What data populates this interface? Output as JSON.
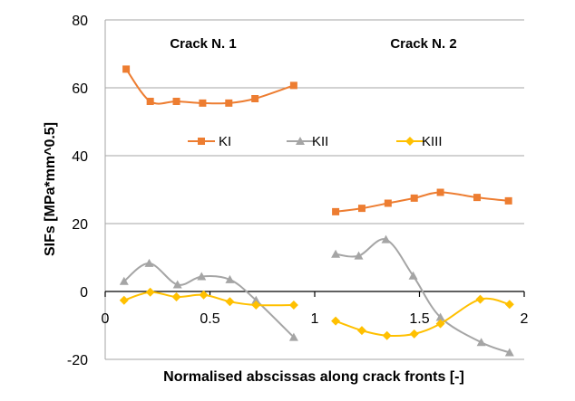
{
  "chart_data": {
    "type": "line",
    "title": "",
    "xlabel": "Normalised abscissas along crack fronts [-]",
    "ylabel": "SIFs [MPa*mm^0.5]",
    "xlim": [
      0,
      2
    ],
    "ylim": [
      -20,
      80
    ],
    "xticks": [
      0,
      0.5,
      1,
      1.5,
      2
    ],
    "xtick_labels": [
      "0",
      "0.5",
      "1",
      "1.5",
      "2"
    ],
    "yticks": [
      -20,
      0,
      20,
      40,
      60,
      80
    ],
    "ytick_labels": [
      "-20",
      "0",
      "20",
      "40",
      "60",
      "80"
    ],
    "grid": "horizontal",
    "legend_position": "center",
    "annotations": [
      "Crack N. 1",
      "Crack N. 2"
    ],
    "series": [
      {
        "name": "KI",
        "color": "#ED7D31",
        "marker": "square",
        "segments": [
          {
            "x": [
              0.1,
              0.215,
              0.34,
              0.465,
              0.59,
              0.715,
              0.9
            ],
            "y": [
              65.5,
              56,
              56,
              55.5,
              55.5,
              56.8,
              60.7
            ]
          },
          {
            "x": [
              1.1,
              1.225,
              1.35,
              1.475,
              1.6,
              1.775,
              1.925
            ],
            "y": [
              23.5,
              24.5,
              26,
              27.5,
              29.2,
              27.7,
              26.7
            ]
          }
        ]
      },
      {
        "name": "KII",
        "color": "#A5A5A5",
        "marker": "triangle",
        "segments": [
          {
            "x": [
              0.09,
              0.21,
              0.345,
              0.46,
              0.595,
              0.72,
              0.9
            ],
            "y": [
              3,
              8.3,
              2,
              4.4,
              3.5,
              -2.6,
              -13.5
            ]
          },
          {
            "x": [
              1.1,
              1.21,
              1.34,
              1.47,
              1.6,
              1.795,
              1.93
            ],
            "y": [
              11,
              10.5,
              15.3,
              4.6,
              -7.6,
              -15,
              -18
            ]
          }
        ]
      },
      {
        "name": "KIII",
        "color": "#FFC000",
        "marker": "diamond",
        "segments": [
          {
            "x": [
              0.09,
              0.215,
              0.34,
              0.47,
              0.595,
              0.72,
              0.9
            ],
            "y": [
              -2.6,
              -0.2,
              -1.6,
              -1,
              -3,
              -4,
              -4
            ]
          },
          {
            "x": [
              1.1,
              1.225,
              1.345,
              1.475,
              1.6,
              1.79,
              1.93
            ],
            "y": [
              -8.7,
              -11.5,
              -13,
              -12.5,
              -9.5,
              -2.3,
              -3.8
            ]
          }
        ]
      }
    ]
  }
}
